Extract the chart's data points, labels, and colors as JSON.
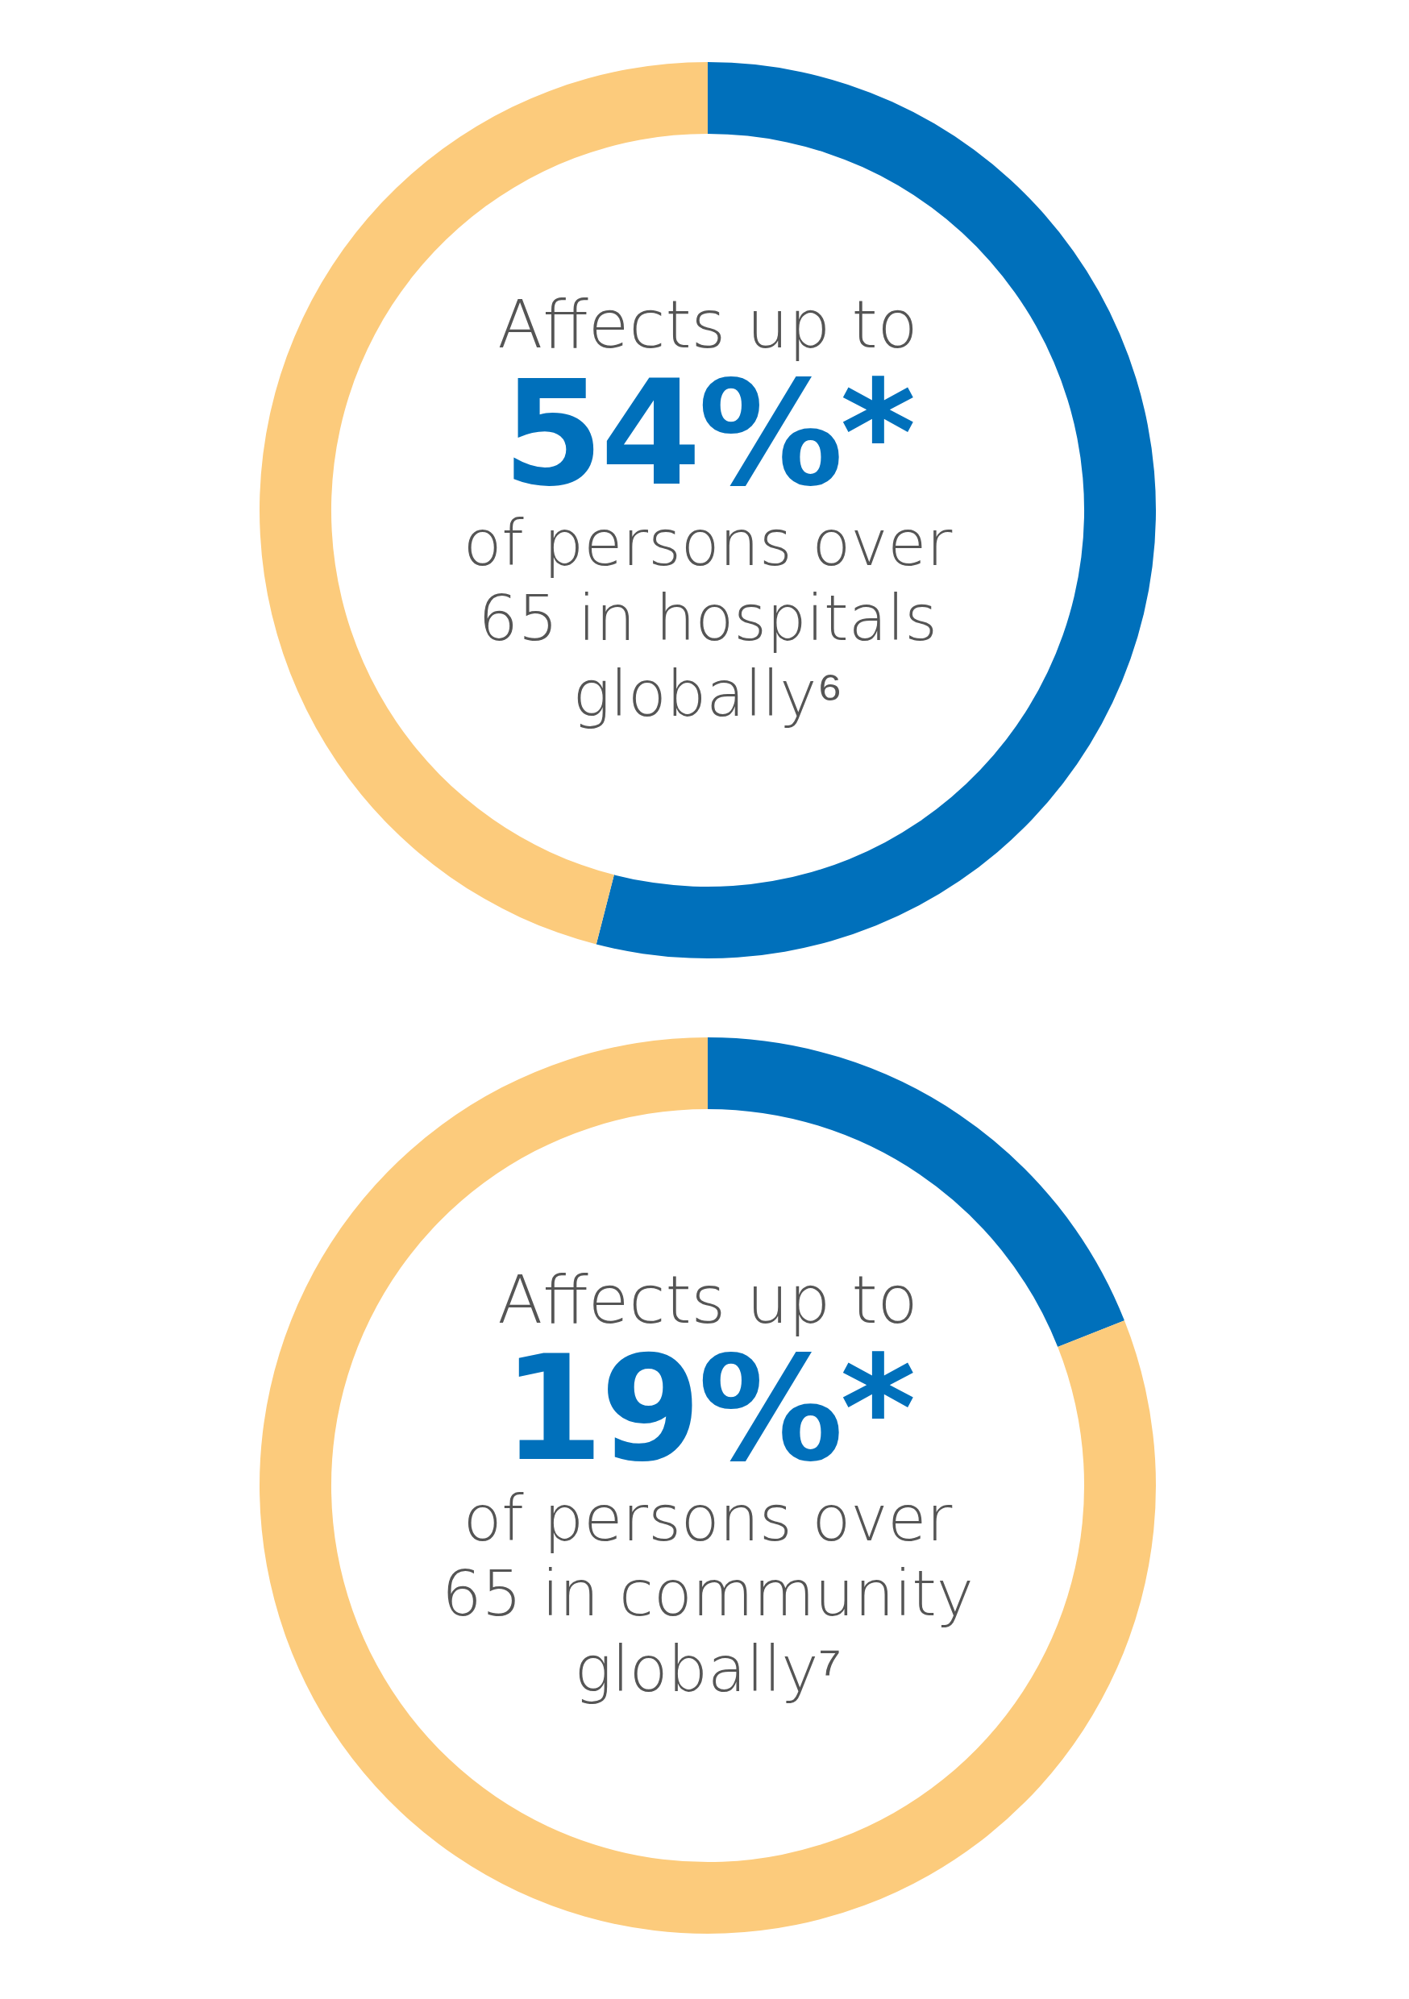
{
  "chart_data": [
    {
      "type": "donut",
      "categories": [
        null,
        null
      ],
      "values": [
        54,
        46
      ],
      "colors": [
        "#0070bb",
        "#fccb7c"
      ],
      "legend": false,
      "annotations": [
        "Affects up to",
        "54%*",
        "of persons over 65 in hospitals globally⁶"
      ]
    },
    {
      "type": "donut",
      "categories": [
        null,
        null
      ],
      "values": [
        19,
        81
      ],
      "colors": [
        "#0070bb",
        "#fccb7c"
      ],
      "legend": false,
      "annotations": [
        "Affects up to",
        "19%*",
        "of persons over 65 in community globally⁷"
      ]
    }
  ]
}
